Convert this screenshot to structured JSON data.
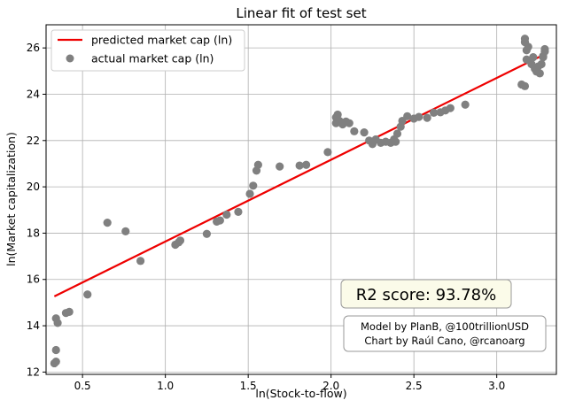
{
  "chart_data": {
    "type": "scatter",
    "title": "Linear fit of test set",
    "xlabel": "ln(Stock-to-flow)",
    "ylabel": "ln(Market capitalization)",
    "xlim": [
      0.28,
      3.36
    ],
    "ylim": [
      11.9,
      27.0
    ],
    "xticks": [
      0.5,
      1.0,
      1.5,
      2.0,
      2.5,
      3.0
    ],
    "xtick_labels": [
      "0.5",
      "1.0",
      "1.5",
      "2.0",
      "2.5",
      "3.0"
    ],
    "yticks": [
      12,
      14,
      16,
      18,
      20,
      22,
      24,
      26
    ],
    "ytick_labels": [
      "12",
      "14",
      "16",
      "18",
      "20",
      "22",
      "24",
      "26"
    ],
    "grid": true,
    "legend_position": "top-left",
    "colors": {
      "line": "#ee0000",
      "points": "#808080"
    },
    "series": [
      {
        "name": "predicted market cap (ln)",
        "kind": "line",
        "points": [
          [
            0.33,
            15.27
          ],
          [
            3.29,
            25.73
          ]
        ]
      },
      {
        "name": "actual market cap (ln)",
        "kind": "scatter",
        "points": [
          [
            0.33,
            12.38
          ],
          [
            0.34,
            12.45
          ],
          [
            0.34,
            12.95
          ],
          [
            0.34,
            14.32
          ],
          [
            0.35,
            14.12
          ],
          [
            0.4,
            14.55
          ],
          [
            0.42,
            14.6
          ],
          [
            0.53,
            15.35
          ],
          [
            0.65,
            18.45
          ],
          [
            0.76,
            18.08
          ],
          [
            0.85,
            16.8
          ],
          [
            1.06,
            17.5
          ],
          [
            1.08,
            17.6
          ],
          [
            1.09,
            17.68
          ],
          [
            1.25,
            17.97
          ],
          [
            1.31,
            18.5
          ],
          [
            1.33,
            18.55
          ],
          [
            1.37,
            18.8
          ],
          [
            1.44,
            18.92
          ],
          [
            1.51,
            19.7
          ],
          [
            1.53,
            20.05
          ],
          [
            1.55,
            20.7
          ],
          [
            1.56,
            20.95
          ],
          [
            1.69,
            20.88
          ],
          [
            1.81,
            20.92
          ],
          [
            1.85,
            20.95
          ],
          [
            1.98,
            21.5
          ],
          [
            2.03,
            23.0
          ],
          [
            2.03,
            22.75
          ],
          [
            2.04,
            23.12
          ],
          [
            2.05,
            22.85
          ],
          [
            2.07,
            22.7
          ],
          [
            2.09,
            22.82
          ],
          [
            2.11,
            22.75
          ],
          [
            2.14,
            22.4
          ],
          [
            2.2,
            22.35
          ],
          [
            2.23,
            22.0
          ],
          [
            2.25,
            21.85
          ],
          [
            2.27,
            22.05
          ],
          [
            2.3,
            21.9
          ],
          [
            2.33,
            21.95
          ],
          [
            2.36,
            21.9
          ],
          [
            2.38,
            22.05
          ],
          [
            2.39,
            21.95
          ],
          [
            2.4,
            22.3
          ],
          [
            2.42,
            22.6
          ],
          [
            2.43,
            22.85
          ],
          [
            2.46,
            23.05
          ],
          [
            2.5,
            22.95
          ],
          [
            2.53,
            23.02
          ],
          [
            2.58,
            22.98
          ],
          [
            2.62,
            23.2
          ],
          [
            2.66,
            23.22
          ],
          [
            2.69,
            23.3
          ],
          [
            2.72,
            23.4
          ],
          [
            2.81,
            23.55
          ],
          [
            3.15,
            24.42
          ],
          [
            3.17,
            24.35
          ],
          [
            3.17,
            26.4
          ],
          [
            3.17,
            26.25
          ],
          [
            3.18,
            25.9
          ],
          [
            3.18,
            25.5
          ],
          [
            3.19,
            26.05
          ],
          [
            3.2,
            25.45
          ],
          [
            3.21,
            25.3
          ],
          [
            3.22,
            25.6
          ],
          [
            3.23,
            25.1
          ],
          [
            3.24,
            24.98
          ],
          [
            3.25,
            25.2
          ],
          [
            3.26,
            24.9
          ],
          [
            3.27,
            25.3
          ],
          [
            3.28,
            25.6
          ],
          [
            3.29,
            25.85
          ],
          [
            3.29,
            25.95
          ],
          [
            3.28,
            25.65
          ]
        ]
      }
    ],
    "annotations": {
      "r2_text": "R2 score: 93.78%",
      "credit_line1": "Model by PlanB, @100trillionUSD",
      "credit_line2": "Chart by Raúl Cano, @rcanoarg"
    }
  }
}
